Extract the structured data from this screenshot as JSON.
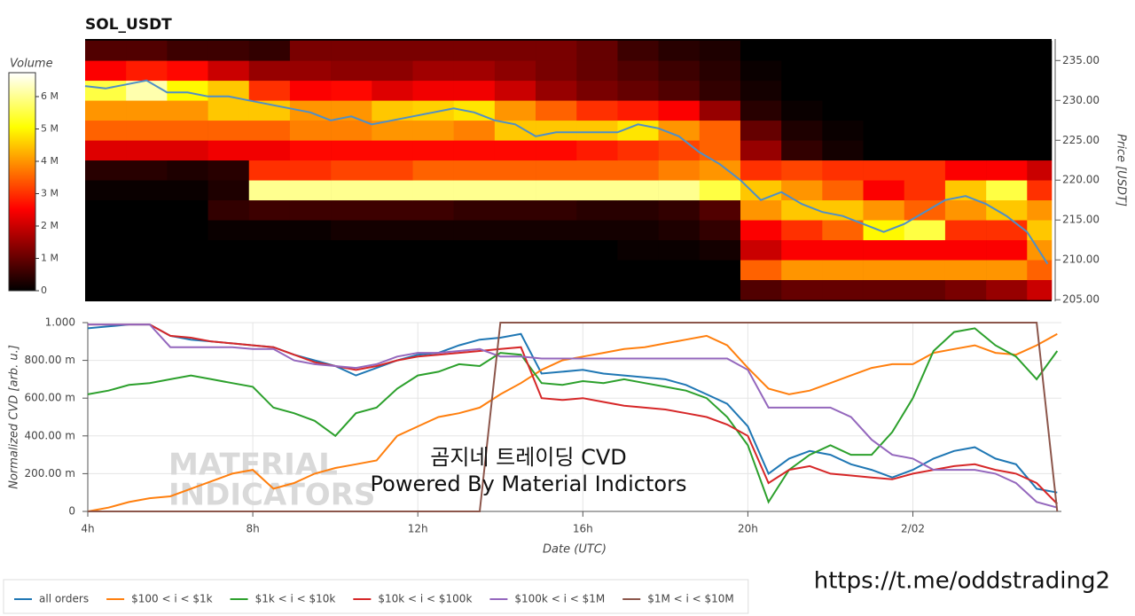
{
  "chart_data": [
    {
      "type": "heatmap",
      "title": "SOL_USDT",
      "ylabel": "Price [USDT]",
      "y_axis_side": "right",
      "xlim": [
        4,
        27.6
      ],
      "ylim": [
        204.8,
        237.7
      ],
      "yticks": [
        {
          "value": 205,
          "label": "205.00"
        },
        {
          "value": 210,
          "label": "210.00"
        },
        {
          "value": 215,
          "label": "215.00"
        },
        {
          "value": 220,
          "label": "220.00"
        },
        {
          "value": 225,
          "label": "225.00"
        },
        {
          "value": 230,
          "label": "230.00"
        },
        {
          "value": 235,
          "label": "235.00"
        }
      ],
      "colorbar": {
        "title": "Volume",
        "lim": [
          0,
          6.74
        ],
        "ticks": [
          0,
          {
            "value": 1,
            "label": "1 M"
          },
          {
            "value": 2,
            "label": "2 M"
          },
          {
            "value": 3,
            "label": "3 M"
          },
          {
            "value": 4,
            "label": "4 M"
          },
          {
            "value": 5,
            "label": "5 M"
          },
          {
            "value": 6,
            "label": "6 M"
          }
        ]
      },
      "x_bins": [
        4,
        5,
        6,
        7,
        8,
        9,
        10,
        11,
        12,
        13,
        14,
        15,
        16,
        17,
        18,
        19,
        20,
        21,
        22,
        23,
        24,
        25,
        26,
        27,
        27.6
      ],
      "y_bins": [
        205,
        207.5,
        210,
        212.5,
        215,
        217.5,
        220,
        222.5,
        225,
        227.5,
        230,
        232.5,
        235,
        237.5
      ],
      "values": [
        [
          0,
          0,
          0,
          0,
          0,
          0,
          0,
          0,
          0,
          0,
          0,
          0,
          0,
          0,
          0,
          0,
          0.8,
          1.0,
          1.0,
          1.0,
          1.0,
          1.2,
          1.5,
          2.0
        ],
        [
          0,
          0,
          0,
          0,
          0,
          0,
          0,
          0,
          0,
          0,
          0,
          0,
          0,
          0,
          0,
          0,
          3.5,
          4.0,
          4.0,
          4.0,
          4.0,
          4.0,
          4.0,
          3.5
        ],
        [
          0,
          0,
          0,
          0,
          0,
          0,
          0,
          0,
          0,
          0,
          0,
          0,
          0,
          0.1,
          0.1,
          0.2,
          2.0,
          2.5,
          2.5,
          2.5,
          2.5,
          2.5,
          2.5,
          4.0
        ],
        [
          0,
          0,
          0,
          0.1,
          0.1,
          0.1,
          0.2,
          0.2,
          0.2,
          0.2,
          0.2,
          0.2,
          0.2,
          0.2,
          0.3,
          0.5,
          2.5,
          3.0,
          3.5,
          5.0,
          5.5,
          3.0,
          3.0,
          4.5
        ],
        [
          0,
          0,
          0,
          0.5,
          0.6,
          0.6,
          0.6,
          0.6,
          0.6,
          0.5,
          0.5,
          0.5,
          0.4,
          0.4,
          0.5,
          0.8,
          4.0,
          4.5,
          4.5,
          4.0,
          3.5,
          4.0,
          4.5,
          4.0
        ],
        [
          0.1,
          0.1,
          0.1,
          0.3,
          6.0,
          6.0,
          6.0,
          6.0,
          6.0,
          6.0,
          6.0,
          6.0,
          6.0,
          6.0,
          6.0,
          5.5,
          4.5,
          4.0,
          3.5,
          2.5,
          3.0,
          4.5,
          5.5,
          3.0
        ],
        [
          0.4,
          0.4,
          0.3,
          0.4,
          3.0,
          3.0,
          3.2,
          3.2,
          3.5,
          3.5,
          3.5,
          3.5,
          3.5,
          3.5,
          3.8,
          4.0,
          3.0,
          3.2,
          3.0,
          3.0,
          3.0,
          2.5,
          2.5,
          2.0
        ],
        [
          2.2,
          2.2,
          2.2,
          2.4,
          2.4,
          2.6,
          2.6,
          2.6,
          2.6,
          2.6,
          2.6,
          2.6,
          2.8,
          3.0,
          3.2,
          3.5,
          1.5,
          0.5,
          0.2,
          0,
          0,
          0,
          0,
          0
        ],
        [
          3.5,
          3.5,
          3.5,
          3.5,
          3.5,
          3.8,
          3.8,
          4.0,
          4.0,
          3.8,
          4.5,
          4.5,
          4.5,
          4.8,
          4.0,
          3.5,
          1.0,
          0.3,
          0.1,
          0,
          0,
          0,
          0,
          0
        ],
        [
          4.0,
          4.0,
          4.0,
          4.5,
          4.5,
          4.0,
          4.0,
          4.5,
          4.6,
          4.8,
          4.0,
          3.5,
          3.0,
          2.8,
          2.5,
          1.5,
          0.4,
          0.1,
          0,
          0,
          0,
          0,
          0,
          0
        ],
        [
          5.5,
          6.2,
          5.0,
          4.5,
          3.0,
          2.5,
          2.6,
          2.2,
          2.4,
          2.4,
          2.0,
          1.5,
          1.2,
          1.0,
          0.8,
          0.5,
          0.2,
          0,
          0,
          0,
          0,
          0,
          0,
          0
        ],
        [
          2.5,
          2.8,
          2.6,
          2.0,
          1.5,
          1.5,
          1.4,
          1.4,
          1.6,
          1.6,
          1.4,
          1.2,
          1.0,
          0.8,
          0.6,
          0.4,
          0.1,
          0,
          0,
          0,
          0,
          0,
          0,
          0
        ],
        [
          0.8,
          0.8,
          0.6,
          0.6,
          0.5,
          1.2,
          1.2,
          1.2,
          1.2,
          1.2,
          1.2,
          1.2,
          1.0,
          0.6,
          0.4,
          0.3,
          0,
          0,
          0,
          0,
          0,
          0,
          0,
          0
        ]
      ],
      "series": [
        {
          "color": "#4f8fc6",
          "x": [
            4,
            4.5,
            5,
            5.5,
            6,
            6.5,
            7,
            7.5,
            8,
            8.5,
            9,
            9.5,
            10,
            10.5,
            11,
            11.5,
            12,
            12.5,
            13,
            13.5,
            14,
            14.5,
            15,
            15.5,
            16,
            16.5,
            17,
            17.5,
            18,
            18.5,
            19,
            19.5,
            20,
            20.5,
            21,
            21.5,
            22,
            22.5,
            23,
            23.5,
            24,
            24.5,
            25,
            25.5,
            26,
            26.5,
            27,
            27.5
          ],
          "values": [
            231.8,
            231.5,
            232,
            232.5,
            231,
            231,
            230.5,
            230.5,
            230,
            229.5,
            229,
            228.5,
            227.5,
            228,
            227,
            227.5,
            228,
            228.5,
            229,
            228.5,
            227.5,
            227,
            225.5,
            226,
            226,
            226,
            226,
            227,
            226.5,
            225.5,
            223.5,
            222,
            220,
            217.5,
            218.5,
            217,
            216,
            215.5,
            214.5,
            213.5,
            214.5,
            216,
            217.5,
            218,
            217,
            215.5,
            213.5,
            209.5
          ]
        }
      ]
    },
    {
      "type": "line",
      "xlabel": "Date (UTC)",
      "ylabel": "Normalized CVD [arb. u.]",
      "grid": true,
      "legend": "bottom-left",
      "xlim": [
        4,
        27.6
      ],
      "ylim": [
        0,
        1
      ],
      "xticks": [
        {
          "value": 4,
          "label": "4h"
        },
        {
          "value": 8,
          "label": "8h"
        },
        {
          "value": 12,
          "label": "12h"
        },
        {
          "value": 16,
          "label": "16h"
        },
        {
          "value": 20,
          "label": "20h"
        },
        {
          "value": 24,
          "label": "2/02"
        }
      ],
      "yticks": [
        0,
        {
          "value": 0.2,
          "label": "200.00 m"
        },
        {
          "value": 0.4,
          "label": "400.00 m"
        },
        {
          "value": 0.6,
          "label": "600.00 m"
        },
        {
          "value": 0.8,
          "label": "800.00 m"
        },
        {
          "value": 1,
          "label": "1.000"
        }
      ],
      "annotations": [
        "곰지네 트레이딩 CVD",
        "Powered By Material Indictors"
      ],
      "watermark": [
        "MATERIAL",
        "INDICATORS"
      ],
      "x": [
        4,
        4.5,
        5,
        5.5,
        6,
        6.5,
        7,
        7.5,
        8,
        8.5,
        9,
        9.5,
        10,
        10.5,
        11,
        11.5,
        12,
        12.5,
        13,
        13.5,
        14,
        14.5,
        15,
        15.5,
        16,
        16.5,
        17,
        17.5,
        18,
        18.5,
        19,
        19.5,
        20,
        20.5,
        21,
        21.5,
        22,
        22.5,
        23,
        23.5,
        24,
        24.5,
        25,
        25.5,
        26,
        26.5,
        27,
        27.5
      ],
      "series": [
        {
          "name": "all orders",
          "color": "#1f77b4",
          "values": [
            0.97,
            0.98,
            0.99,
            0.99,
            0.93,
            0.91,
            0.9,
            0.89,
            0.88,
            0.87,
            0.83,
            0.8,
            0.77,
            0.72,
            0.76,
            0.8,
            0.83,
            0.84,
            0.88,
            0.91,
            0.92,
            0.94,
            0.73,
            0.74,
            0.75,
            0.73,
            0.72,
            0.71,
            0.7,
            0.67,
            0.62,
            0.57,
            0.45,
            0.2,
            0.28,
            0.32,
            0.3,
            0.25,
            0.22,
            0.18,
            0.22,
            0.28,
            0.32,
            0.34,
            0.28,
            0.25,
            0.12,
            0.1
          ]
        },
        {
          "name": "$100 < i < $1k",
          "color": "#ff7f0e",
          "values": [
            0,
            0.02,
            0.05,
            0.07,
            0.08,
            0.12,
            0.16,
            0.2,
            0.22,
            0.12,
            0.15,
            0.2,
            0.23,
            0.25,
            0.27,
            0.4,
            0.45,
            0.5,
            0.52,
            0.55,
            0.62,
            0.68,
            0.75,
            0.8,
            0.82,
            0.84,
            0.86,
            0.87,
            0.89,
            0.91,
            0.93,
            0.88,
            0.76,
            0.65,
            0.62,
            0.64,
            0.68,
            0.72,
            0.76,
            0.78,
            0.78,
            0.84,
            0.86,
            0.88,
            0.84,
            0.83,
            0.88,
            0.94
          ]
        },
        {
          "name": "$1k < i < $10k",
          "color": "#2ca02c",
          "values": [
            0.62,
            0.64,
            0.67,
            0.68,
            0.7,
            0.72,
            0.7,
            0.68,
            0.66,
            0.55,
            0.52,
            0.48,
            0.4,
            0.52,
            0.55,
            0.65,
            0.72,
            0.74,
            0.78,
            0.77,
            0.84,
            0.83,
            0.68,
            0.67,
            0.69,
            0.68,
            0.7,
            0.68,
            0.66,
            0.64,
            0.6,
            0.5,
            0.35,
            0.05,
            0.22,
            0.3,
            0.35,
            0.3,
            0.3,
            0.42,
            0.6,
            0.85,
            0.95,
            0.97,
            0.88,
            0.82,
            0.7,
            0.85
          ]
        },
        {
          "name": "$10k < i < $100k",
          "color": "#d62728",
          "values": [
            0.99,
            0.99,
            0.99,
            0.99,
            0.93,
            0.92,
            0.9,
            0.89,
            0.88,
            0.87,
            0.83,
            0.79,
            0.77,
            0.75,
            0.77,
            0.8,
            0.82,
            0.83,
            0.84,
            0.85,
            0.86,
            0.87,
            0.6,
            0.59,
            0.6,
            0.58,
            0.56,
            0.55,
            0.54,
            0.52,
            0.5,
            0.46,
            0.4,
            0.15,
            0.22,
            0.24,
            0.2,
            0.19,
            0.18,
            0.17,
            0.2,
            0.22,
            0.24,
            0.25,
            0.22,
            0.2,
            0.15,
            0.04
          ]
        },
        {
          "name": "$100k < i < $1M",
          "color": "#9467bd",
          "values": [
            0.99,
            0.99,
            0.99,
            0.99,
            0.87,
            0.87,
            0.87,
            0.87,
            0.86,
            0.86,
            0.8,
            0.78,
            0.77,
            0.76,
            0.78,
            0.82,
            0.84,
            0.84,
            0.85,
            0.86,
            0.82,
            0.82,
            0.81,
            0.81,
            0.81,
            0.81,
            0.81,
            0.81,
            0.81,
            0.81,
            0.81,
            0.81,
            0.75,
            0.55,
            0.55,
            0.55,
            0.55,
            0.5,
            0.38,
            0.3,
            0.28,
            0.22,
            0.22,
            0.22,
            0.2,
            0.15,
            0.05,
            0.02
          ]
        },
        {
          "name": "$1M < i < $10M",
          "color": "#8c564b",
          "values": [
            0,
            0,
            0,
            0,
            0,
            0,
            0,
            0,
            0,
            0,
            0,
            0,
            0,
            0,
            0,
            0,
            0,
            0,
            0,
            0,
            1,
            1,
            1,
            1,
            1,
            1,
            1,
            1,
            1,
            1,
            1,
            1,
            1,
            1,
            1,
            1,
            1,
            1,
            1,
            1,
            1,
            1,
            1,
            1,
            1,
            1,
            1,
            0
          ]
        }
      ]
    }
  ],
  "link": "https://t.me/oddstrading2"
}
